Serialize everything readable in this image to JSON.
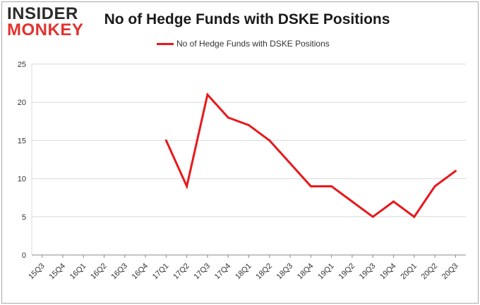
{
  "logo": {
    "line1": "INSIDER",
    "line2": "MONKEY"
  },
  "colors": {
    "line": "#e8181b",
    "grid": "#d9d9d9",
    "axis": "#888888",
    "logo_red": "#e0332f"
  },
  "chart_data": {
    "type": "line",
    "title": "No of Hedge Funds with DSKE Positions",
    "xlabel": "",
    "ylabel": "",
    "legend_position": "top-center",
    "grid": true,
    "ylim": [
      0,
      25
    ],
    "yticks": [
      0,
      5,
      10,
      15,
      20,
      25
    ],
    "categories": [
      "15Q3",
      "15Q4",
      "16Q1",
      "16Q2",
      "16Q3",
      "16Q4",
      "17Q1",
      "17Q2",
      "17Q3",
      "17Q4",
      "18Q1",
      "18Q2",
      "18Q3",
      "18Q4",
      "19Q1",
      "19Q2",
      "19Q3",
      "19Q4",
      "20Q1",
      "20Q2",
      "20Q3"
    ],
    "series": [
      {
        "name": "No of Hedge Funds with DSKE Positions",
        "values": [
          null,
          null,
          null,
          null,
          null,
          null,
          15,
          9,
          21,
          18,
          17,
          15,
          12,
          9,
          9,
          7,
          5,
          7,
          5,
          9,
          11
        ]
      }
    ]
  }
}
